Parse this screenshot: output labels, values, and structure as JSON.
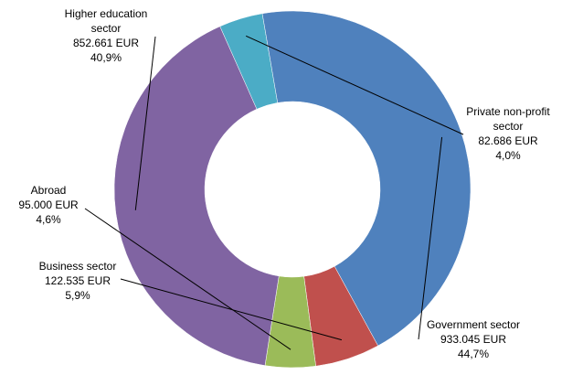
{
  "chart_data": {
    "type": "pie",
    "subtype": "donut",
    "title": "",
    "currency": "EUR",
    "slices": [
      {
        "name": "Private non-profit sector",
        "label_lines": [
          "Private non-profit",
          "sector"
        ],
        "value": 82686,
        "value_text": "82.686 EUR",
        "percent": 4.0,
        "percent_text": "4,0%",
        "color": "#4bacc6"
      },
      {
        "name": "Government sector",
        "label_lines": [
          "Government sector"
        ],
        "value": 933045,
        "value_text": "933.045 EUR",
        "percent": 44.7,
        "percent_text": "44,7%",
        "color": "#4f81bd"
      },
      {
        "name": "Business sector",
        "label_lines": [
          "Business sector"
        ],
        "value": 122535,
        "value_text": "122.535 EUR",
        "percent": 5.9,
        "percent_text": "5,9%",
        "color": "#c0504d"
      },
      {
        "name": "Abroad",
        "label_lines": [
          "Abroad"
        ],
        "value": 95000,
        "value_text": "95.000 EUR",
        "percent": 4.6,
        "percent_text": "4,6%",
        "color": "#9bbb59"
      },
      {
        "name": "Higher education sector",
        "label_lines": [
          "Higher education",
          "sector"
        ],
        "value": 852661,
        "value_text": "852.661 EUR",
        "percent": 40.9,
        "percent_text": "40,9%",
        "color": "#8064a2"
      }
    ]
  }
}
